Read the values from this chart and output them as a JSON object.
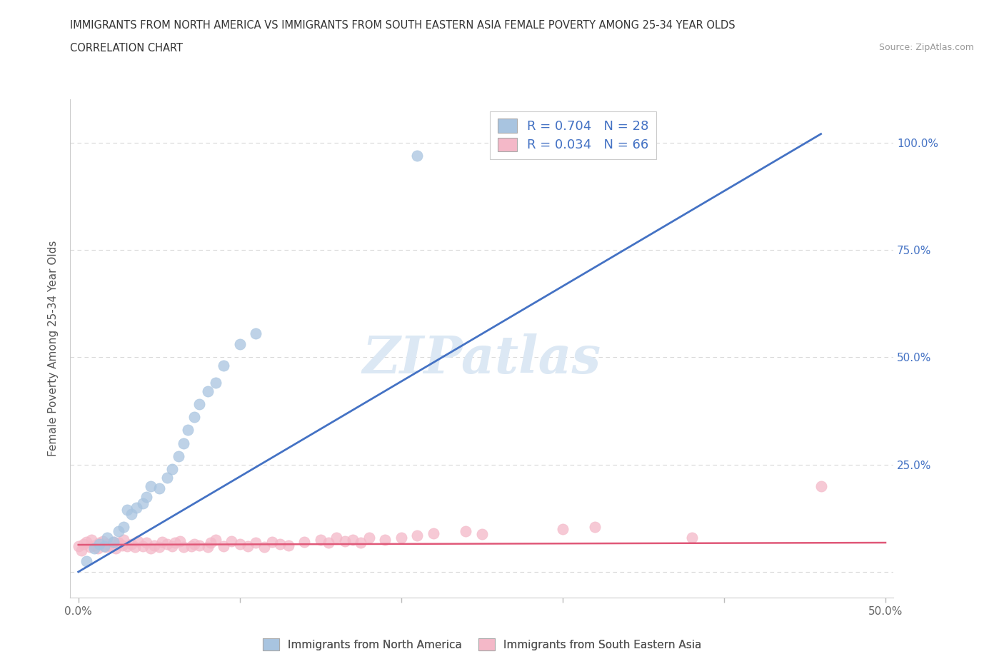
{
  "title_line1": "IMMIGRANTS FROM NORTH AMERICA VS IMMIGRANTS FROM SOUTH EASTERN ASIA FEMALE POVERTY AMONG 25-34 YEAR OLDS",
  "title_line2": "CORRELATION CHART",
  "source_text": "Source: ZipAtlas.com",
  "ylabel": "Female Poverty Among 25-34 Year Olds",
  "blue_R": 0.704,
  "blue_N": 28,
  "pink_R": 0.034,
  "pink_N": 66,
  "blue_color": "#a8c4e0",
  "blue_line_color": "#4472c4",
  "pink_color": "#f4b8c8",
  "pink_line_color": "#e05878",
  "legend_blue_label": "R = 0.704   N = 28",
  "legend_pink_label": "R = 0.034   N = 66",
  "legend_label_blue": "Immigrants from North America",
  "legend_label_pink": "Immigrants from South Eastern Asia",
  "blue_x": [
    0.005,
    0.01,
    0.013,
    0.016,
    0.018,
    0.022,
    0.025,
    0.028,
    0.03,
    0.033,
    0.036,
    0.04,
    0.042,
    0.045,
    0.05,
    0.055,
    0.058,
    0.062,
    0.065,
    0.068,
    0.072,
    0.075,
    0.08,
    0.085,
    0.09,
    0.1,
    0.11,
    0.21
  ],
  "blue_y": [
    0.025,
    0.055,
    0.065,
    0.06,
    0.08,
    0.07,
    0.095,
    0.105,
    0.145,
    0.135,
    0.15,
    0.16,
    0.175,
    0.2,
    0.195,
    0.22,
    0.24,
    0.27,
    0.3,
    0.33,
    0.36,
    0.39,
    0.42,
    0.44,
    0.48,
    0.53,
    0.555,
    0.97
  ],
  "pink_x": [
    0.0,
    0.002,
    0.003,
    0.005,
    0.007,
    0.008,
    0.01,
    0.012,
    0.013,
    0.015,
    0.017,
    0.018,
    0.02,
    0.022,
    0.023,
    0.025,
    0.027,
    0.028,
    0.03,
    0.033,
    0.035,
    0.037,
    0.04,
    0.042,
    0.045,
    0.047,
    0.05,
    0.052,
    0.055,
    0.058,
    0.06,
    0.063,
    0.065,
    0.07,
    0.072,
    0.075,
    0.08,
    0.082,
    0.085,
    0.09,
    0.095,
    0.1,
    0.105,
    0.11,
    0.115,
    0.12,
    0.125,
    0.13,
    0.14,
    0.15,
    0.155,
    0.16,
    0.165,
    0.17,
    0.175,
    0.18,
    0.19,
    0.2,
    0.21,
    0.22,
    0.24,
    0.25,
    0.3,
    0.32,
    0.38,
    0.46
  ],
  "pink_y": [
    0.06,
    0.05,
    0.065,
    0.07,
    0.058,
    0.075,
    0.062,
    0.055,
    0.068,
    0.072,
    0.058,
    0.065,
    0.06,
    0.07,
    0.055,
    0.068,
    0.062,
    0.075,
    0.06,
    0.065,
    0.058,
    0.072,
    0.06,
    0.068,
    0.055,
    0.062,
    0.058,
    0.07,
    0.065,
    0.06,
    0.068,
    0.072,
    0.058,
    0.06,
    0.065,
    0.062,
    0.058,
    0.068,
    0.075,
    0.06,
    0.072,
    0.065,
    0.06,
    0.068,
    0.058,
    0.07,
    0.065,
    0.062,
    0.07,
    0.075,
    0.068,
    0.08,
    0.072,
    0.075,
    0.068,
    0.08,
    0.075,
    0.08,
    0.085,
    0.09,
    0.095,
    0.088,
    0.1,
    0.105,
    0.08,
    0.2
  ],
  "blue_line_x0": 0.0,
  "blue_line_y0": 0.0,
  "blue_line_x1": 0.46,
  "blue_line_y1": 1.02,
  "pink_line_x0": 0.0,
  "pink_line_y0": 0.063,
  "pink_line_x1": 0.5,
  "pink_line_y1": 0.068,
  "xlim_min": -0.005,
  "xlim_max": 0.505,
  "ylim_min": -0.06,
  "ylim_max": 1.1,
  "background_color": "#ffffff",
  "grid_color": "#d8d8d8",
  "watermark_color": "#dce8f4"
}
